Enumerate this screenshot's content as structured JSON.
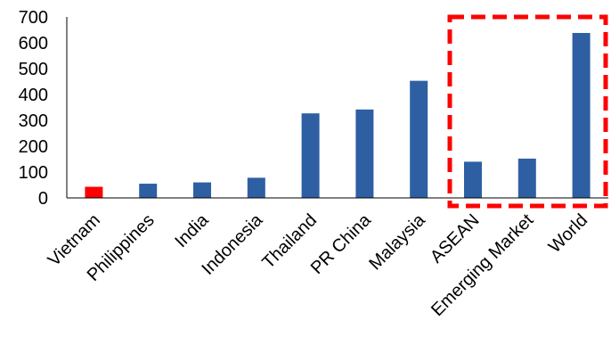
{
  "chart_data": {
    "type": "bar",
    "categories": [
      "Vietnam",
      "Philippines",
      "India",
      "Indonesia",
      "Thailand",
      "PR China",
      "Malaysia",
      "ASEAN",
      "Emerging Market",
      "World"
    ],
    "values": [
      43,
      55,
      60,
      78,
      327,
      342,
      453,
      140,
      152,
      638
    ],
    "highlight_index": 0,
    "ylim": [
      0,
      700
    ],
    "yticks": [
      0,
      100,
      200,
      300,
      400,
      500,
      600,
      700
    ],
    "grid": false,
    "annotation": "dashed red box around ASEAN, Emerging Market and World",
    "colors": {
      "bar": "#2e5fa3",
      "highlight": "#ff0000",
      "annotation_box": "#ff0000",
      "axis": "#000000"
    }
  }
}
